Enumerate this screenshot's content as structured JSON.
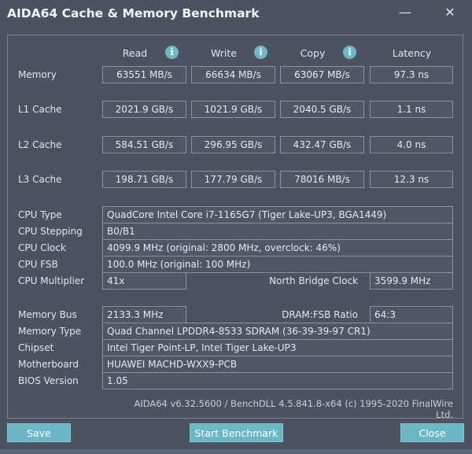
{
  "window": {
    "title": "AIDA64 Cache & Memory Benchmark",
    "minimize_icon": "minimize-icon",
    "close_icon": "close-icon"
  },
  "columns": [
    "Read",
    "Write",
    "Copy",
    "Latency"
  ],
  "bench_rows": [
    {
      "label": "Memory",
      "values": [
        "63551 MB/s",
        "66634 MB/s",
        "63067 MB/s",
        "97.3 ns"
      ]
    },
    {
      "label": "L1 Cache",
      "values": [
        "2021.9 GB/s",
        "1021.9 GB/s",
        "2040.5 GB/s",
        "1.1 ns"
      ]
    },
    {
      "label": "L2 Cache",
      "values": [
        "584.51 GB/s",
        "296.95 GB/s",
        "432.47 GB/s",
        "4.0 ns"
      ]
    },
    {
      "label": "L3 Cache",
      "values": [
        "198.71 GB/s",
        "177.79 GB/s",
        "78016 MB/s",
        "12.3 ns"
      ]
    }
  ],
  "info": {
    "cpu_type": {
      "label": "CPU Type",
      "value": "QuadCore Intel Core i7-1165G7  (Tiger Lake-UP3, BGA1449)"
    },
    "cpu_stepping": {
      "label": "CPU Stepping",
      "value": "B0/B1"
    },
    "cpu_clock": {
      "label": "CPU Clock",
      "value": "4099.9 MHz  (original: 2800 MHz, overclock: 46%)"
    },
    "cpu_fsb": {
      "label": "CPU FSB",
      "value": "100.0 MHz  (original: 100 MHz)"
    },
    "cpu_multiplier": {
      "label": "CPU Multiplier",
      "value": "41x"
    },
    "nb_clock": {
      "label": "North Bridge Clock",
      "value": "3599.9 MHz"
    },
    "memory_bus": {
      "label": "Memory Bus",
      "value": "2133.3 MHz"
    },
    "dram_ratio": {
      "label": "DRAM:FSB Ratio",
      "value": "64:3"
    },
    "memory_type": {
      "label": "Memory Type",
      "value": "Quad Channel LPDDR4-8533 SDRAM  (36-39-39-97 CR1)"
    },
    "chipset": {
      "label": "Chipset",
      "value": "Intel Tiger Point-LP, Intel Tiger Lake-UP3"
    },
    "motherboard": {
      "label": "Motherboard",
      "value": "HUAWEI MACHD-WXX9-PCB"
    },
    "bios": {
      "label": "BIOS Version",
      "value": "1.05"
    }
  },
  "footer": "AIDA64 v6.32.5600 / BenchDLL 4.5.841.8-x64  (c) 1995-2020 FinalWire Ltd.",
  "buttons": {
    "save": "Save",
    "start": "Start Benchmark",
    "close": "Close"
  },
  "colors": {
    "background": "#4b5361",
    "button": "#6bb7c5",
    "info_icon": "#6cb7c8"
  }
}
